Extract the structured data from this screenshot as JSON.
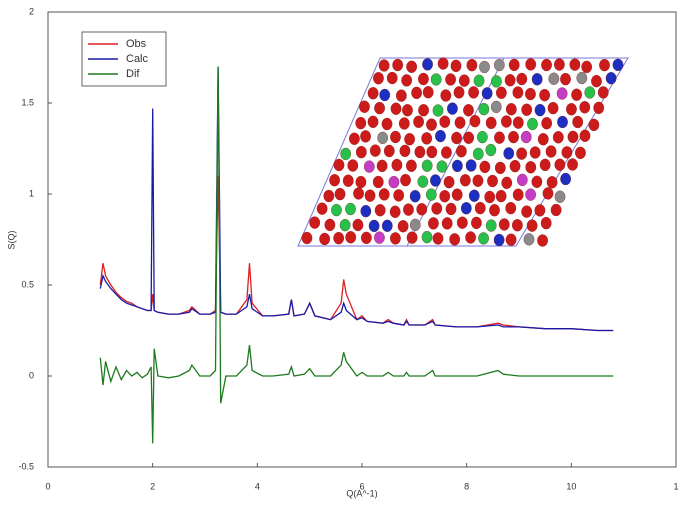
{
  "chart_data": {
    "type": "line",
    "x_label": "Q(A^-1)",
    "y_label": "S(Q)",
    "xlim": [
      0,
      12
    ],
    "xticks": [
      0,
      2,
      4,
      6,
      8,
      10,
      {
        "value": 12,
        "label": "1"
      }
    ],
    "ylim": [
      -0.5,
      2
    ],
    "yticks": [
      -0.5,
      0,
      0.5,
      1,
      1.5,
      2
    ],
    "legend": "upper left",
    "x": [
      1.0,
      1.05,
      1.1,
      1.2,
      1.3,
      1.4,
      1.5,
      1.6,
      1.7,
      1.8,
      1.9,
      1.97,
      2.0,
      2.03,
      2.1,
      2.3,
      2.5,
      2.7,
      2.75,
      2.9,
      3.1,
      3.2,
      3.25,
      3.3,
      3.4,
      3.6,
      3.8,
      3.85,
      3.9,
      4.1,
      4.3,
      4.6,
      4.65,
      4.7,
      4.9,
      5.0,
      5.1,
      5.4,
      5.6,
      5.65,
      5.7,
      5.9,
      6.0,
      6.1,
      6.4,
      6.5,
      6.6,
      6.8,
      6.85,
      6.9,
      7.2,
      7.35,
      7.4,
      7.8,
      8.2,
      8.6,
      8.7,
      9.0,
      9.5,
      10.0,
      10.5,
      10.8
    ],
    "series": [
      {
        "name": "Obs",
        "color": "#dd1f1f",
        "values": [
          0.5,
          0.62,
          0.55,
          0.5,
          0.46,
          0.43,
          0.41,
          0.4,
          0.38,
          0.37,
          0.36,
          0.36,
          0.45,
          0.36,
          0.35,
          0.34,
          0.34,
          0.36,
          0.38,
          0.34,
          0.34,
          0.36,
          1.1,
          0.35,
          0.34,
          0.34,
          0.42,
          0.62,
          0.4,
          0.33,
          0.33,
          0.34,
          0.42,
          0.33,
          0.34,
          0.4,
          0.33,
          0.31,
          0.4,
          0.53,
          0.45,
          0.31,
          0.33,
          0.3,
          0.29,
          0.31,
          0.29,
          0.28,
          0.31,
          0.28,
          0.28,
          0.31,
          0.28,
          0.27,
          0.27,
          0.29,
          0.28,
          0.27,
          0.26,
          0.26,
          0.25,
          0.25
        ]
      },
      {
        "name": "Calc",
        "color": "#1a1aaa",
        "values": [
          0.48,
          0.55,
          0.52,
          0.48,
          0.45,
          0.42,
          0.4,
          0.39,
          0.38,
          0.37,
          0.36,
          0.36,
          1.47,
          0.36,
          0.35,
          0.34,
          0.34,
          0.35,
          0.37,
          0.34,
          0.34,
          0.35,
          1.7,
          0.35,
          0.34,
          0.34,
          0.38,
          0.45,
          0.37,
          0.33,
          0.33,
          0.34,
          0.42,
          0.33,
          0.34,
          0.4,
          0.33,
          0.31,
          0.35,
          0.4,
          0.36,
          0.31,
          0.32,
          0.3,
          0.29,
          0.3,
          0.29,
          0.28,
          0.3,
          0.28,
          0.28,
          0.3,
          0.28,
          0.27,
          0.27,
          0.28,
          0.27,
          0.27,
          0.26,
          0.26,
          0.25,
          0.25
        ]
      },
      {
        "name": "Dif",
        "color": "#1e7a1e",
        "values": [
          0.1,
          -0.05,
          0.08,
          -0.03,
          0.05,
          -0.02,
          0.03,
          0.0,
          0.02,
          -0.01,
          0.01,
          0.05,
          -0.37,
          0.15,
          0.0,
          -0.01,
          0.0,
          0.03,
          0.06,
          0.0,
          0.0,
          0.03,
          1.7,
          -0.15,
          0.0,
          0.0,
          0.06,
          0.17,
          0.03,
          0.0,
          0.0,
          0.01,
          0.05,
          0.0,
          0.01,
          0.04,
          0.0,
          0.0,
          0.06,
          0.13,
          0.08,
          0.0,
          0.02,
          0.0,
          0.0,
          0.02,
          0.0,
          0.0,
          0.02,
          0.0,
          0.0,
          0.03,
          0.0,
          0.0,
          0.0,
          0.03,
          0.01,
          0.0,
          0.0,
          0.0,
          0.0,
          0.0
        ]
      }
    ]
  }
}
